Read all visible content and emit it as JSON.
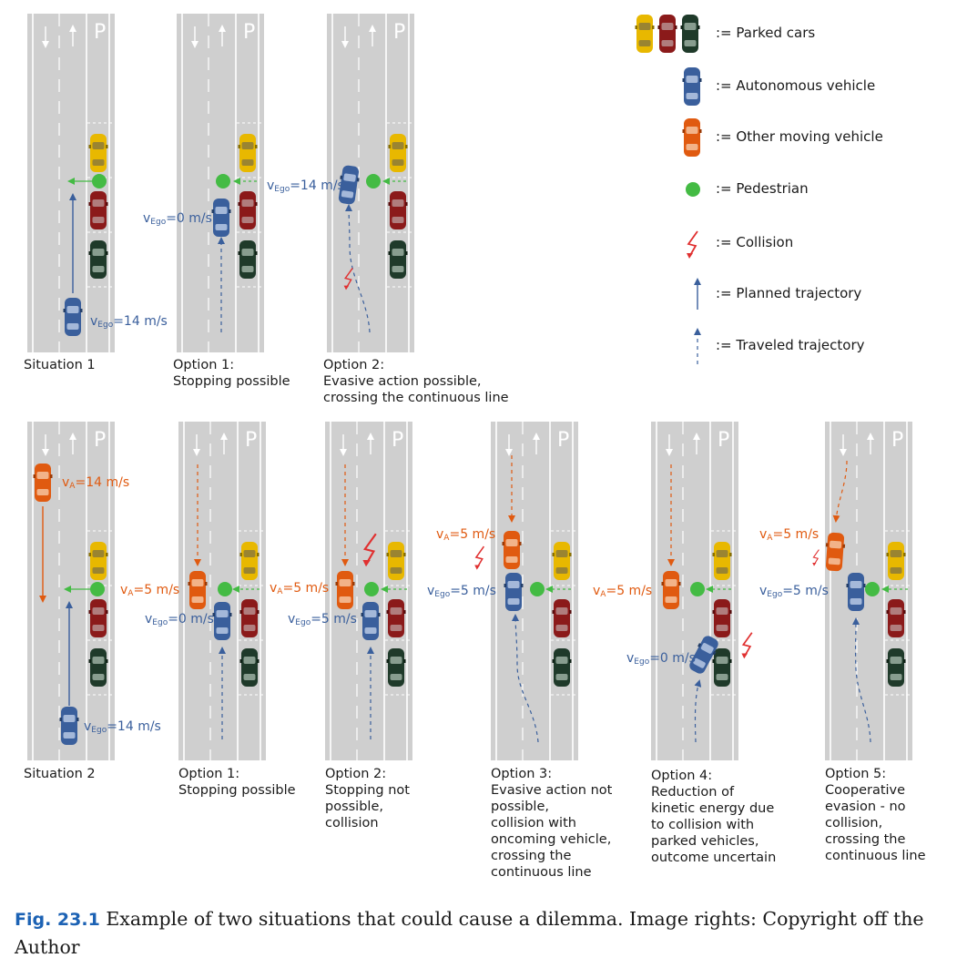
{
  "colors": {
    "road": "#cfcfcf",
    "autonomous": "#3a5f9c",
    "other": "#e05a10",
    "pedestrian": "#44bb44",
    "collision": "#e03030",
    "parked": [
      "#e8b800",
      "#8b1a1a",
      "#1f3a2a"
    ]
  },
  "icons": {
    "arrow_down": "↓",
    "arrow_up": "↑",
    "parking": "P"
  },
  "legend": {
    "parked": ":= Parked cars",
    "autonomous": ":= Autonomous vehicle",
    "other": ":= Other moving vehicle",
    "pedestrian": ":= Pedestrian",
    "collision": ":= Collision",
    "planned": ":= Planned trajectory",
    "traveled": ":= Traveled trajectory"
  },
  "labels": {
    "sit1": "Situation 1",
    "opt1a": "Option 1:\nStopping possible",
    "opt2a": "Option 2:\nEvasive action possible,\ncrossing the continuous line",
    "sit2": "Situation 2",
    "opt1b": "Option 1:\nStopping possible",
    "opt2b": "Option 2:\nStopping not\npossible,\ncollision",
    "opt3b": "Option 3:\nEvasive action not\npossible,\ncollision with\noncoming vehicle,\ncrossing the\ncontinuous line",
    "opt4b": "Option 4:\nReduction of\nkinetic energy due\nto collision with\nparked vehicles,\noutcome uncertain",
    "opt5b": "Option 5:\nCooperative\nevasion - no\ncollision,\ncrossing the\ncontinuous line"
  },
  "velocity": {
    "v": "v",
    "ego": "Ego",
    "a": "A",
    "v14": "=14 m/s",
    "v0": "=0 m/s",
    "v5": "=5 m/s"
  },
  "caption": {
    "fig": "Fig. 23.1",
    "text": " Example of two situations that could cause a dilemma. Image rights: Copyright off the Author"
  }
}
